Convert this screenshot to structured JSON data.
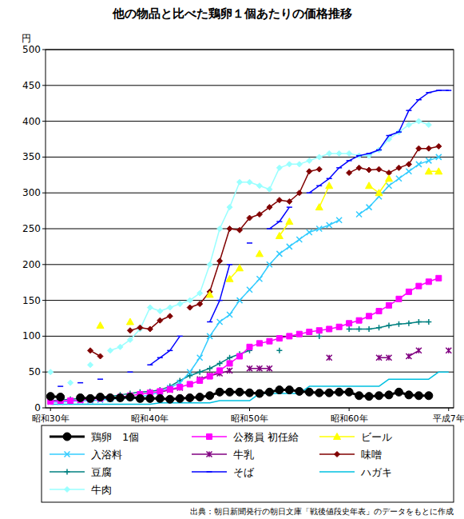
{
  "chart_data": {
    "type": "line",
    "title": "他の物品と比べた鶏卵１個あたりの価格推移",
    "y_label": "円",
    "source": "出典：朝日新聞発行の朝日文庫「戦後値段史年表」のデータをもとに作成",
    "x": [
      1955,
      1956,
      1957,
      1958,
      1959,
      1960,
      1961,
      1962,
      1963,
      1964,
      1965,
      1966,
      1967,
      1968,
      1969,
      1970,
      1971,
      1972,
      1973,
      1974,
      1975,
      1976,
      1977,
      1978,
      1979,
      1980,
      1981,
      1982,
      1983,
      1984,
      1985,
      1986,
      1987,
      1988,
      1989,
      1990,
      1991,
      1992,
      1993,
      1994,
      1995
    ],
    "xlim": [
      1954.5,
      1995.5
    ],
    "xticks": [
      {
        "value": 1955,
        "label": "昭和30年"
      },
      {
        "value": 1965,
        "label": "昭和40年"
      },
      {
        "value": 1975,
        "label": "昭和50年"
      },
      {
        "value": 1985,
        "label": "昭和60年"
      },
      {
        "value": 1995,
        "label": "平成7年"
      }
    ],
    "ylim": [
      0,
      500
    ],
    "yticks": [
      0,
      50,
      100,
      150,
      200,
      250,
      300,
      350,
      400,
      450,
      500
    ],
    "grid": true,
    "legend": "bottom",
    "series": [
      {
        "name": "鶏卵　1個",
        "color": "#000000",
        "marker": "circle",
        "line_style": "thick",
        "values": [
          16,
          15,
          null,
          14,
          13,
          15,
          14,
          14,
          15,
          13,
          13,
          13,
          12,
          13,
          14,
          15,
          17,
          22,
          22,
          22,
          21,
          20,
          22,
          25,
          25,
          23,
          22,
          21,
          21,
          22,
          22,
          17,
          16,
          17,
          18,
          22,
          18,
          17,
          17,
          null,
          null
        ]
      },
      {
        "name": "公務員 初任給",
        "color": "#ff00ff",
        "marker": "square",
        "line_style": "solid",
        "values": [
          9,
          10,
          10,
          11,
          12,
          13,
          14,
          15,
          17,
          19,
          21,
          23,
          26,
          29,
          33,
          38,
          44,
          52,
          62,
          72,
          85,
          90,
          93,
          97,
          100,
          103,
          106,
          108,
          110,
          113,
          118,
          122,
          128,
          135,
          143,
          152,
          162,
          170,
          176,
          181,
          null
        ]
      },
      {
        "name": "ビール",
        "color": "#ffff00",
        "marker": "triangle",
        "line_style": "solid",
        "values": [
          null,
          null,
          null,
          null,
          null,
          115,
          null,
          null,
          120,
          null,
          null,
          null,
          null,
          null,
          null,
          null,
          158,
          null,
          180,
          195,
          null,
          215,
          null,
          240,
          260,
          null,
          null,
          280,
          310,
          null,
          null,
          null,
          310,
          300,
          320,
          null,
          null,
          null,
          330,
          330,
          null
        ]
      },
      {
        "name": "入浴料",
        "color": "#33ccff",
        "marker": "x",
        "line_style": "solid",
        "values": [
          8,
          8,
          9,
          10,
          10,
          11,
          12,
          13,
          14,
          16,
          18,
          22,
          28,
          35,
          50,
          70,
          100,
          120,
          130,
          150,
          165,
          180,
          200,
          215,
          225,
          235,
          245,
          250,
          255,
          262,
          null,
          270,
          280,
          295,
          310,
          320,
          330,
          340,
          345,
          350,
          null
        ]
      },
      {
        "name": "牛乳",
        "color": "#800080",
        "marker": "asterisk",
        "line_style": "solid",
        "values": [
          null,
          null,
          null,
          null,
          null,
          null,
          null,
          null,
          null,
          null,
          null,
          22,
          25,
          28,
          null,
          40,
          45,
          48,
          52,
          null,
          55,
          55,
          55,
          null,
          null,
          null,
          null,
          null,
          70,
          null,
          null,
          null,
          null,
          70,
          70,
          null,
          72,
          80,
          null,
          null,
          80
        ]
      },
      {
        "name": "味噌",
        "color": "#800000",
        "marker": "diamond",
        "line_style": "solid",
        "values": [
          null,
          null,
          null,
          null,
          80,
          72,
          null,
          null,
          108,
          112,
          110,
          122,
          128,
          null,
          140,
          145,
          162,
          205,
          250,
          248,
          265,
          270,
          280,
          290,
          288,
          300,
          330,
          333,
          null,
          null,
          328,
          335,
          332,
          333,
          328,
          335,
          340,
          362,
          362,
          365,
          null
        ]
      },
      {
        "name": "豆腐",
        "color": "#008080",
        "marker": "plus",
        "line_style": "solid",
        "values": [
          10,
          11,
          12,
          13,
          14,
          15,
          16,
          18,
          20,
          22,
          23,
          25,
          30,
          38,
          45,
          50,
          55,
          62,
          70,
          75,
          80,
          null,
          null,
          80,
          null,
          null,
          null,
          100,
          null,
          null,
          110,
          110,
          110,
          112,
          115,
          117,
          118,
          120,
          120,
          null,
          null
        ]
      },
      {
        "name": "そば",
        "color": "#0000ff",
        "marker": "dash",
        "line_style": "solid",
        "values": [
          null,
          30,
          null,
          35,
          null,
          40,
          null,
          null,
          50,
          null,
          60,
          70,
          80,
          100,
          null,
          null,
          120,
          150,
          200,
          null,
          230,
          null,
          250,
          260,
          280,
          null,
          300,
          310,
          320,
          335,
          345,
          352,
          355,
          360,
          380,
          385,
          415,
          430,
          440,
          443,
          443
        ]
      },
      {
        "name": "ハガキ",
        "color": "#00c0e0",
        "marker": "none",
        "line_style": "solid",
        "values": [
          5,
          5,
          5,
          5,
          5,
          5,
          5,
          5,
          5,
          5,
          5,
          7,
          7,
          7,
          7,
          7,
          7,
          10,
          10,
          10,
          10,
          20,
          20,
          20,
          20,
          20,
          30,
          30,
          30,
          30,
          30,
          30,
          30,
          30,
          40,
          40,
          40,
          40,
          40,
          50,
          50
        ]
      },
      {
        "name": "牛肉",
        "color": "#99ffff",
        "marker": "diamond",
        "line_style": "solid",
        "values": [
          50,
          null,
          35,
          null,
          60,
          null,
          80,
          85,
          95,
          110,
          140,
          135,
          140,
          145,
          150,
          160,
          200,
          250,
          280,
          315,
          315,
          310,
          305,
          335,
          340,
          340,
          345,
          350,
          355,
          355,
          355,
          352,
          352,
          360,
          375,
          385,
          395,
          400,
          395,
          null,
          null
        ]
      }
    ]
  }
}
